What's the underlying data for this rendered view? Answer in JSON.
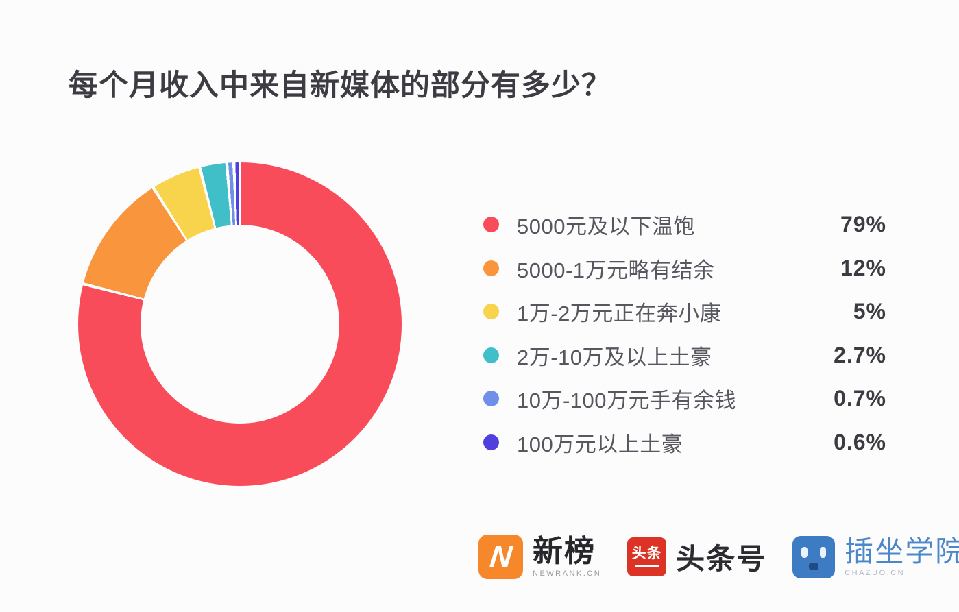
{
  "title": "每个月收入中来自新媒体的部分有多少？",
  "chart_data": {
    "type": "pie",
    "subtype": "donut",
    "title": "每个月收入中来自新媒体的部分有多少？",
    "start_angle_deg": 0,
    "direction": "clockwise",
    "inner_radius_ratio": 0.61,
    "legend_position": "right",
    "slice_gap_color": "#ffffff",
    "series": [
      {
        "label": "5000元及以下温饱",
        "value": 79,
        "display": "79%",
        "color": "#f94c5a"
      },
      {
        "label": "5000-1万元略有结余",
        "value": 12,
        "display": "12%",
        "color": "#f9953d"
      },
      {
        "label": "1万-2万元正在奔小康",
        "value": 5,
        "display": "5%",
        "color": "#f8d44d"
      },
      {
        "label": "2万-10万及以上土豪",
        "value": 2.7,
        "display": "2.7%",
        "color": "#40bfc9"
      },
      {
        "label": "10万-100万元手有余钱",
        "value": 0.7,
        "display": "0.7%",
        "color": "#6f8fe8"
      },
      {
        "label": "100万元以上土豪",
        "value": 0.6,
        "display": "0.6%",
        "color": "#4f40dd"
      }
    ]
  },
  "footer": {
    "logos": [
      {
        "name": "新榜",
        "subtext": "NEWRANK.CN",
        "icon": "newrank-n-icon",
        "icon_glyph": "N",
        "brand_color": "#f6882b"
      },
      {
        "name": "头条号",
        "subtext": "",
        "icon": "toutiao-icon",
        "icon_glyph": "头条",
        "brand_color": "#dd3226"
      },
      {
        "name": "插坐学院",
        "subtext": "CHAZUO.CN",
        "icon": "chazuo-face-icon",
        "icon_glyph": "",
        "brand_color": "#3d7cc2"
      }
    ]
  }
}
